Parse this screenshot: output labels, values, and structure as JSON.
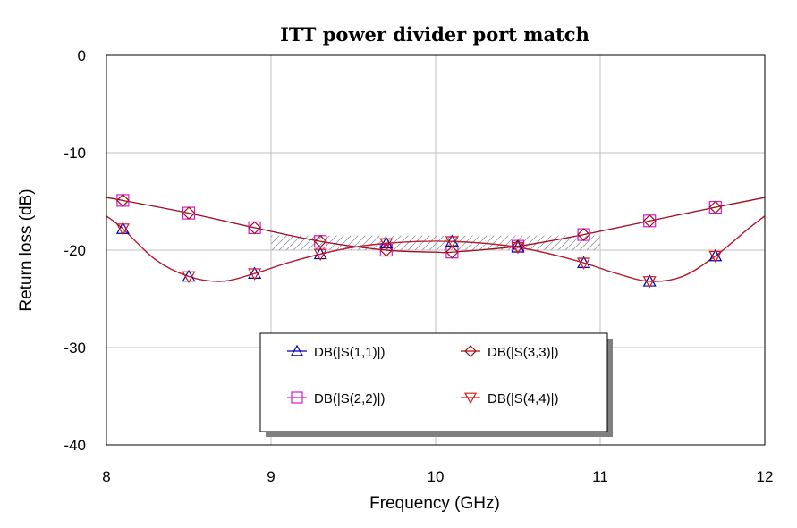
{
  "chart_data": {
    "type": "line",
    "title": "ITT power divider port match",
    "xlabel": "Frequency (GHz)",
    "ylabel": "Return loss (dB)",
    "xlim": [
      8,
      12
    ],
    "ylim": [
      -40,
      0
    ],
    "xticks": [
      8,
      9,
      10,
      11,
      12
    ],
    "yticks": [
      0,
      -10,
      -20,
      -30,
      -40
    ],
    "grid": true,
    "legend_position": "bottom-center",
    "series": [
      {
        "name": "DB(|S(1,1)|)",
        "color": "#0000b0",
        "marker": "triangle-up",
        "x": [
          8.0,
          8.1,
          8.3,
          8.5,
          8.7,
          8.9,
          9.1,
          9.3,
          9.5,
          9.7,
          9.9,
          10.1,
          10.3,
          10.5,
          10.7,
          10.9,
          11.1,
          11.3,
          11.5,
          11.7,
          11.9,
          12.0
        ],
        "y": [
          -16.5,
          -17.8,
          -21.0,
          -22.7,
          -23.2,
          -22.4,
          -21.3,
          -20.4,
          -19.7,
          -19.3,
          -19.1,
          -19.1,
          -19.3,
          -19.7,
          -20.4,
          -21.3,
          -22.4,
          -23.2,
          -22.7,
          -20.6,
          -17.8,
          -16.5
        ],
        "marker_x": [
          8.1,
          8.5,
          8.9,
          9.3,
          9.7,
          10.1,
          10.5,
          10.9,
          11.3,
          11.7
        ]
      },
      {
        "name": "DB(|S(2,2)|)",
        "color": "#d21cd2",
        "marker": "square",
        "x": [
          8.0,
          8.1,
          8.5,
          8.9,
          9.3,
          9.7,
          10.0,
          10.1,
          10.5,
          10.9,
          11.3,
          11.7,
          12.0
        ],
        "y": [
          -14.6,
          -14.9,
          -16.2,
          -17.7,
          -19.1,
          -20.0,
          -20.2,
          -20.2,
          -19.6,
          -18.4,
          -17.0,
          -15.6,
          -14.6
        ],
        "marker_x": [
          8.1,
          8.5,
          8.9,
          9.3,
          9.7,
          10.1,
          10.5,
          10.9,
          11.3,
          11.7
        ]
      },
      {
        "name": "DB(|S(3,3)|)",
        "color": "#a01010",
        "marker": "diamond",
        "x": [
          8.0,
          8.1,
          8.5,
          8.9,
          9.3,
          9.7,
          10.0,
          10.1,
          10.5,
          10.9,
          11.3,
          11.7,
          12.0
        ],
        "y": [
          -14.6,
          -14.9,
          -16.2,
          -17.7,
          -19.1,
          -20.0,
          -20.2,
          -20.2,
          -19.6,
          -18.4,
          -17.0,
          -15.6,
          -14.6
        ],
        "marker_x": [
          8.1,
          8.5,
          8.9,
          9.3,
          9.7,
          10.1,
          10.5,
          10.9,
          11.3,
          11.7
        ]
      },
      {
        "name": "DB(|S(4,4)|)",
        "color": "#d01818",
        "marker": "triangle-down",
        "x": [
          8.0,
          8.1,
          8.3,
          8.5,
          8.7,
          8.9,
          9.1,
          9.3,
          9.5,
          9.7,
          9.9,
          10.1,
          10.3,
          10.5,
          10.7,
          10.9,
          11.1,
          11.3,
          11.5,
          11.7,
          11.9,
          12.0
        ],
        "y": [
          -16.5,
          -17.8,
          -21.0,
          -22.7,
          -23.2,
          -22.4,
          -21.3,
          -20.4,
          -19.7,
          -19.3,
          -19.1,
          -19.1,
          -19.3,
          -19.7,
          -20.4,
          -21.3,
          -22.4,
          -23.2,
          -22.7,
          -20.6,
          -17.8,
          -16.5
        ],
        "marker_x": [
          8.1,
          8.5,
          8.9,
          9.3,
          9.7,
          10.1,
          10.5,
          10.9,
          11.3,
          11.7
        ]
      }
    ],
    "spec_region": {
      "x": [
        9,
        11
      ],
      "y": [
        -20,
        -18.5
      ]
    },
    "legend_order": [
      0,
      2,
      1,
      3
    ]
  }
}
